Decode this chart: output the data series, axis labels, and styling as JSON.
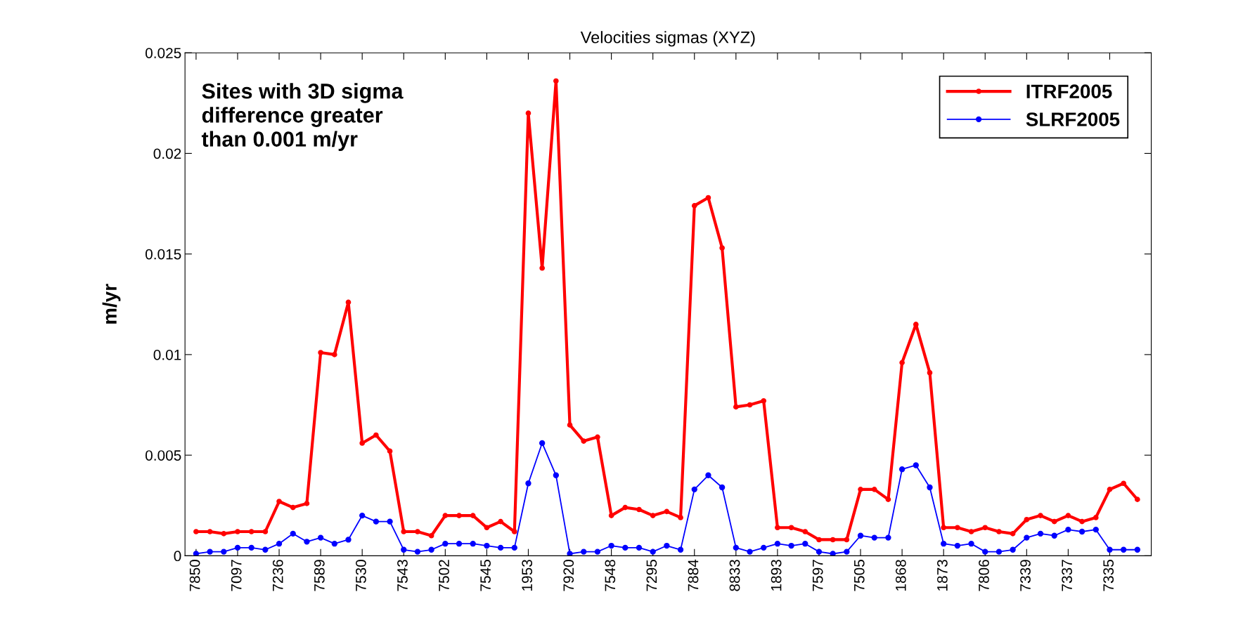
{
  "chart_data": {
    "type": "line",
    "title": "Velocities sigmas (XYZ)",
    "ylabel": "m/yr",
    "annotations": [
      "Sites with 3D sigma\ndifference greater\nthan 0.001 m/yr"
    ],
    "categories": [
      "7850",
      null,
      null,
      "7097",
      null,
      null,
      "7236",
      null,
      null,
      "7589",
      null,
      null,
      "7530",
      null,
      null,
      "7543",
      null,
      null,
      "7502",
      null,
      null,
      "7545",
      null,
      null,
      "1953",
      null,
      null,
      "7920",
      null,
      null,
      "7548",
      null,
      null,
      "7295",
      null,
      null,
      "7884",
      null,
      null,
      "8833",
      null,
      null,
      "1893",
      null,
      null,
      "7597",
      null,
      null,
      "7505",
      null,
      null,
      "1868",
      null,
      null,
      "1873",
      null,
      null,
      "7806",
      null,
      null,
      "7339",
      null,
      null,
      "7337",
      null,
      null,
      "7335",
      null,
      null
    ],
    "series": [
      {
        "name": "ITRF2005",
        "color": "#ff0000",
        "values": [
          0.0012,
          0.0012,
          0.0011,
          0.0012,
          0.0012,
          0.0012,
          0.0027,
          0.0024,
          0.0026,
          0.0101,
          0.01,
          0.0126,
          0.0056,
          0.006,
          0.0052,
          0.0012,
          0.0012,
          0.001,
          0.002,
          0.002,
          0.002,
          0.0014,
          0.0017,
          0.0012,
          0.022,
          0.0143,
          0.0236,
          0.0065,
          0.0057,
          0.0059,
          0.002,
          0.0024,
          0.0023,
          0.002,
          0.0022,
          0.0019,
          0.0174,
          0.0178,
          0.0153,
          0.0074,
          0.0075,
          0.0077,
          0.0014,
          0.0014,
          0.0012,
          0.0008,
          0.0008,
          0.0008,
          0.0033,
          0.0033,
          0.0028,
          0.0096,
          0.0115,
          0.0091,
          0.0014,
          0.0014,
          0.0012,
          0.0014,
          0.0012,
          0.0011,
          0.0018,
          0.002,
          0.0017,
          0.002,
          0.0017,
          0.0019,
          0.0033,
          0.0036,
          0.0028
        ]
      },
      {
        "name": "SLRF2005",
        "color": "#0000ff",
        "values": [
          0.0001,
          0.0002,
          0.0002,
          0.0004,
          0.0004,
          0.0003,
          0.0006,
          0.0011,
          0.0007,
          0.0009,
          0.0006,
          0.0008,
          0.002,
          0.0017,
          0.0017,
          0.0003,
          0.0002,
          0.0003,
          0.0006,
          0.0006,
          0.0006,
          0.0005,
          0.0004,
          0.0004,
          0.0036,
          0.0056,
          0.004,
          0.0001,
          0.0002,
          0.0002,
          0.0005,
          0.0004,
          0.0004,
          0.0002,
          0.0005,
          0.0003,
          0.0033,
          0.004,
          0.0034,
          0.0004,
          0.0002,
          0.0004,
          0.0006,
          0.0005,
          0.0006,
          0.0002,
          0.0001,
          0.0002,
          0.001,
          0.0009,
          0.0009,
          0.0043,
          0.0045,
          0.0034,
          0.0006,
          0.0005,
          0.0006,
          0.0002,
          0.0002,
          0.0003,
          0.0009,
          0.0011,
          0.001,
          0.0013,
          0.0012,
          0.0013,
          0.0003,
          0.0003,
          0.0003
        ]
      }
    ],
    "ylim": [
      0,
      0.025
    ],
    "yticks": [
      0,
      0.005,
      0.01,
      0.015,
      0.02,
      0.025
    ],
    "grid": false,
    "legend": "top right",
    "marker": "circle",
    "line_style": "solid"
  }
}
